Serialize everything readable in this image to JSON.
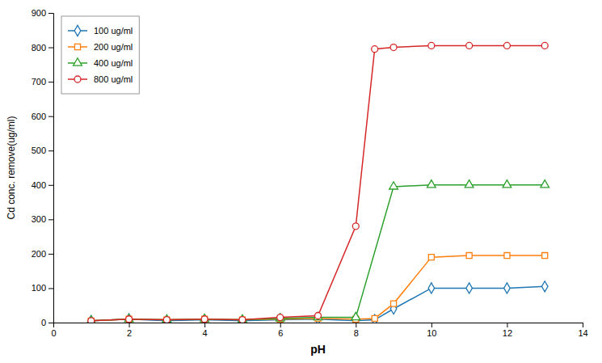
{
  "chart_data": {
    "type": "line",
    "xlabel": "pH",
    "ylabel": "Cd conc. remove(ug/ml)",
    "series": [
      {
        "name": "100 ug/ml",
        "marker": "diamond",
        "x": [
          1,
          2,
          3,
          4,
          5,
          6,
          7,
          8,
          8.5,
          9,
          10,
          11,
          12,
          13
        ],
        "values": [
          5,
          10,
          5,
          8,
          5,
          8,
          10,
          5,
          8,
          40,
          100,
          100,
          100,
          105
        ]
      },
      {
        "name": "200 ug/ml",
        "marker": "square",
        "x": [
          1,
          2,
          3,
          4,
          5,
          6,
          7,
          8,
          8.5,
          9,
          10,
          11,
          12,
          13
        ],
        "values": [
          5,
          10,
          8,
          10,
          8,
          10,
          12,
          10,
          12,
          55,
          190,
          195,
          195,
          195
        ]
      },
      {
        "name": "400 ug/ml",
        "marker": "triangle",
        "x": [
          1,
          2,
          3,
          4,
          5,
          6,
          7,
          8,
          9,
          10,
          11,
          12,
          13
        ],
        "values": [
          5,
          10,
          8,
          10,
          8,
          12,
          15,
          15,
          395,
          400,
          400,
          400,
          400
        ]
      },
      {
        "name": "800 ug/ml",
        "marker": "circle",
        "x": [
          1,
          2,
          3,
          4,
          5,
          6,
          7,
          8,
          8.5,
          9,
          10,
          11,
          12,
          13
        ],
        "values": [
          5,
          10,
          8,
          10,
          8,
          15,
          20,
          280,
          795,
          800,
          805,
          805,
          805,
          805
        ]
      }
    ],
    "xlim": [
      0,
      14
    ],
    "ylim": [
      0,
      900
    ],
    "xticks": [
      0,
      2,
      4,
      6,
      8,
      10,
      12,
      14
    ],
    "yticks": [
      0,
      100,
      200,
      300,
      400,
      500,
      600,
      700,
      800,
      900
    ],
    "grid": false,
    "legend": "upper left"
  }
}
